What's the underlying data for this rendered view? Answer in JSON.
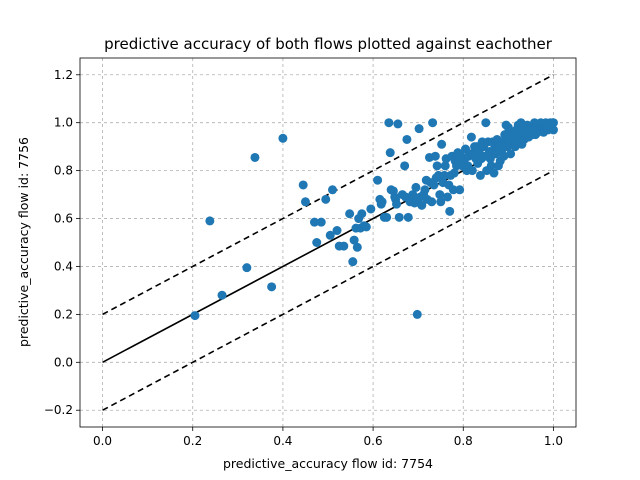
{
  "chart_data": {
    "type": "scatter",
    "title": "predictive accuracy of both flows plotted against eachother",
    "xlabel": "predictive_accuracy flow id: 7754",
    "ylabel": "predictive_accuracy flow id: 7756",
    "xlim": [
      -0.05,
      1.05
    ],
    "ylim": [
      -0.27,
      1.27
    ],
    "xticks": [
      0.0,
      0.2,
      0.4,
      0.6,
      0.8,
      1.0
    ],
    "xtick_labels": [
      "0.0",
      "0.2",
      "0.4",
      "0.6",
      "0.8",
      "1.0"
    ],
    "yticks": [
      -0.2,
      0.0,
      0.2,
      0.4,
      0.6,
      0.8,
      1.0,
      1.2
    ],
    "ytick_labels": [
      "−0.2",
      "0.0",
      "0.2",
      "0.4",
      "0.6",
      "0.8",
      "1.0",
      "1.2"
    ],
    "grid": true,
    "point_color": "#1f77b4",
    "reference_lines": [
      {
        "style": "solid",
        "color": "#000000",
        "x": [
          0.0,
          1.0
        ],
        "y": [
          0.0,
          1.0
        ]
      },
      {
        "style": "dashed",
        "color": "#000000",
        "x": [
          0.0,
          1.0
        ],
        "y": [
          0.2,
          1.2
        ]
      },
      {
        "style": "dashed",
        "color": "#000000",
        "x": [
          0.0,
          1.0
        ],
        "y": [
          -0.2,
          0.8
        ]
      }
    ],
    "points": [
      [
        0.205,
        0.195
      ],
      [
        0.238,
        0.59
      ],
      [
        0.265,
        0.28
      ],
      [
        0.32,
        0.395
      ],
      [
        0.338,
        0.855
      ],
      [
        0.375,
        0.315
      ],
      [
        0.4,
        0.935
      ],
      [
        0.445,
        0.74
      ],
      [
        0.45,
        0.67
      ],
      [
        0.47,
        0.585
      ],
      [
        0.475,
        0.5
      ],
      [
        0.485,
        0.585
      ],
      [
        0.495,
        0.68
      ],
      [
        0.505,
        0.53
      ],
      [
        0.51,
        0.72
      ],
      [
        0.52,
        0.55
      ],
      [
        0.525,
        0.485
      ],
      [
        0.535,
        0.485
      ],
      [
        0.548,
        0.62
      ],
      [
        0.555,
        0.42
      ],
      [
        0.558,
        0.51
      ],
      [
        0.562,
        0.56
      ],
      [
        0.565,
        0.48
      ],
      [
        0.568,
        0.6
      ],
      [
        0.572,
        0.56
      ],
      [
        0.575,
        0.62
      ],
      [
        0.58,
        0.57
      ],
      [
        0.585,
        0.565
      ],
      [
        0.595,
        0.64
      ],
      [
        0.61,
        0.76
      ],
      [
        0.615,
        0.68
      ],
      [
        0.618,
        0.66
      ],
      [
        0.62,
        0.67
      ],
      [
        0.625,
        0.605
      ],
      [
        0.63,
        0.605
      ],
      [
        0.635,
        1.0
      ],
      [
        0.638,
        0.875
      ],
      [
        0.64,
        0.72
      ],
      [
        0.645,
        0.715
      ],
      [
        0.648,
        0.69
      ],
      [
        0.65,
        0.68
      ],
      [
        0.652,
        0.66
      ],
      [
        0.655,
        0.995
      ],
      [
        0.658,
        0.605
      ],
      [
        0.665,
        0.7
      ],
      [
        0.67,
        0.82
      ],
      [
        0.672,
        0.69
      ],
      [
        0.675,
        0.93
      ],
      [
        0.678,
        0.605
      ],
      [
        0.682,
        0.67
      ],
      [
        0.688,
        0.7
      ],
      [
        0.692,
        0.665
      ],
      [
        0.695,
        0.73
      ],
      [
        0.698,
        0.2
      ],
      [
        0.7,
        0.68
      ],
      [
        0.702,
        0.975
      ],
      [
        0.705,
        0.69
      ],
      [
        0.708,
        0.655
      ],
      [
        0.712,
        0.7
      ],
      [
        0.715,
        0.72
      ],
      [
        0.718,
        0.76
      ],
      [
        0.72,
        0.68
      ],
      [
        0.725,
        0.855
      ],
      [
        0.728,
        0.75
      ],
      [
        0.73,
        0.67
      ],
      [
        0.732,
        1.0
      ],
      [
        0.735,
        0.74
      ],
      [
        0.738,
        0.86
      ],
      [
        0.74,
        0.77
      ],
      [
        0.742,
        0.82
      ],
      [
        0.745,
        0.78
      ],
      [
        0.748,
        0.7
      ],
      [
        0.75,
        0.67
      ],
      [
        0.752,
        0.91
      ],
      [
        0.755,
        0.75
      ],
      [
        0.758,
        0.78
      ],
      [
        0.76,
        0.82
      ],
      [
        0.762,
        0.85
      ],
      [
        0.765,
        0.69
      ],
      [
        0.768,
        0.74
      ],
      [
        0.77,
        0.63
      ],
      [
        0.772,
        0.78
      ],
      [
        0.775,
        0.86
      ],
      [
        0.778,
        0.72
      ],
      [
        0.78,
        0.79
      ],
      [
        0.782,
        0.84
      ],
      [
        0.785,
        0.82
      ],
      [
        0.788,
        0.875
      ],
      [
        0.79,
        0.84
      ],
      [
        0.792,
        0.72
      ],
      [
        0.795,
        0.86
      ],
      [
        0.798,
        0.82
      ],
      [
        0.8,
        0.85
      ],
      [
        0.802,
        0.84
      ],
      [
        0.805,
        0.89
      ],
      [
        0.808,
        0.8
      ],
      [
        0.81,
        0.82
      ],
      [
        0.812,
        0.86
      ],
      [
        0.815,
        0.87
      ],
      [
        0.818,
        0.94
      ],
      [
        0.82,
        0.8
      ],
      [
        0.822,
        0.87
      ],
      [
        0.825,
        0.9
      ],
      [
        0.828,
        0.85
      ],
      [
        0.83,
        0.9
      ],
      [
        0.832,
        0.83
      ],
      [
        0.835,
        0.88
      ],
      [
        0.838,
        0.78
      ],
      [
        0.84,
        0.85
      ],
      [
        0.842,
        0.92
      ],
      [
        0.845,
        0.9
      ],
      [
        0.848,
        0.86
      ],
      [
        0.85,
        1.0
      ],
      [
        0.852,
        0.8
      ],
      [
        0.855,
        0.92
      ],
      [
        0.858,
        0.88
      ],
      [
        0.86,
        0.85
      ],
      [
        0.862,
        0.82
      ],
      [
        0.865,
        0.92
      ],
      [
        0.868,
        0.79
      ],
      [
        0.87,
        0.9
      ],
      [
        0.872,
        0.87
      ],
      [
        0.875,
        0.93
      ],
      [
        0.878,
        0.82
      ],
      [
        0.88,
        0.9
      ],
      [
        0.882,
        0.84
      ],
      [
        0.885,
        0.88
      ],
      [
        0.888,
        0.92
      ],
      [
        0.89,
        0.86
      ],
      [
        0.892,
        0.95
      ],
      [
        0.895,
        0.99
      ],
      [
        0.898,
        0.9
      ],
      [
        0.9,
        0.98
      ],
      [
        0.902,
        0.92
      ],
      [
        0.905,
        0.87
      ],
      [
        0.908,
        0.95
      ],
      [
        0.91,
        0.92
      ],
      [
        0.912,
        0.96
      ],
      [
        0.915,
        0.9
      ],
      [
        0.918,
        0.97
      ],
      [
        0.92,
        0.94
      ],
      [
        0.922,
        0.99
      ],
      [
        0.925,
        0.93
      ],
      [
        0.928,
        1.0
      ],
      [
        0.93,
        0.91
      ],
      [
        0.932,
        0.96
      ],
      [
        0.935,
        0.93
      ],
      [
        0.938,
        0.97
      ],
      [
        0.94,
        0.95
      ],
      [
        0.942,
        0.99
      ],
      [
        0.945,
        0.94
      ],
      [
        0.948,
        0.96
      ],
      [
        0.95,
        0.98
      ],
      [
        0.952,
        0.95
      ],
      [
        0.955,
        0.97
      ],
      [
        0.958,
        1.0
      ],
      [
        0.96,
        0.95
      ],
      [
        0.962,
        0.98
      ],
      [
        0.965,
        0.96
      ],
      [
        0.968,
        0.99
      ],
      [
        0.97,
        0.97
      ],
      [
        0.972,
        1.0
      ],
      [
        0.975,
        0.98
      ],
      [
        0.978,
        0.96
      ],
      [
        0.98,
        0.99
      ],
      [
        0.983,
        1.0
      ],
      [
        0.985,
        0.98
      ],
      [
        0.988,
        0.97
      ],
      [
        0.99,
        0.99
      ],
      [
        0.993,
        1.0
      ],
      [
        0.995,
        0.98
      ],
      [
        0.998,
        1.0
      ],
      [
        1.0,
        0.97
      ],
      [
        1.0,
        1.0
      ]
    ]
  }
}
